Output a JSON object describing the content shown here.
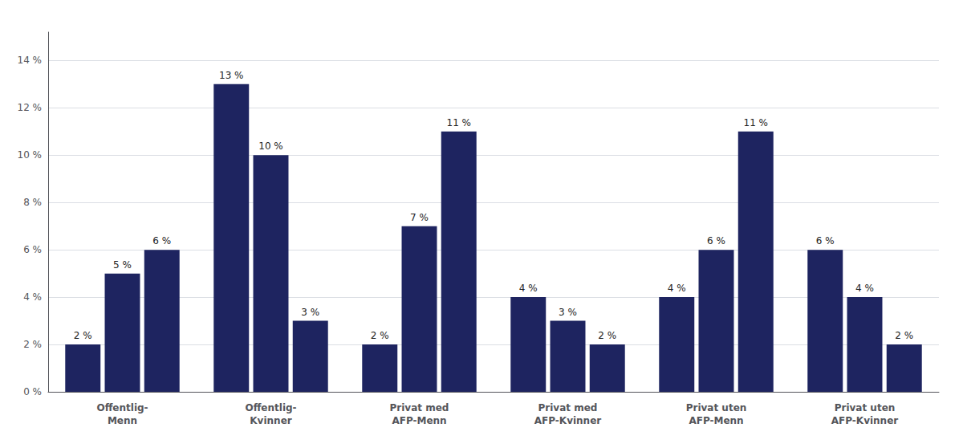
{
  "chart_data": {
    "type": "bar",
    "categories": [
      "Offentlig-\nMenn",
      "Offentlig-\nKvinner",
      "Privat med\nAFP-Menn",
      "Privat med\nAFP-Kvinner",
      "Privat uten\nAFP-Menn",
      "Privat uten\nAFP-Kvinner"
    ],
    "series": [
      {
        "values": [
          2,
          13,
          2,
          4,
          4,
          6
        ],
        "value_labels": [
          "2 %",
          "13 %",
          "2 %",
          "4 %",
          "4 %",
          "6 %"
        ]
      },
      {
        "values": [
          5,
          10,
          7,
          3,
          6,
          4
        ],
        "value_labels": [
          "5 %",
          "10 %",
          "7 %",
          "3 %",
          "6 %",
          "4 %"
        ]
      },
      {
        "values": [
          6,
          3,
          11,
          2,
          11,
          2
        ],
        "value_labels": [
          "6 %",
          "3 %",
          "11 %",
          "2 %",
          "11 %",
          "2 %"
        ]
      }
    ],
    "color": "#1e2460",
    "ylim": [
      0,
      15.2
    ],
    "yticks": [
      {
        "value": 0,
        "label": "0 %"
      },
      {
        "value": 2,
        "label": "2 %"
      },
      {
        "value": 4,
        "label": "4 %"
      },
      {
        "value": 6,
        "label": "6 %"
      },
      {
        "value": 8,
        "label": "8 %"
      },
      {
        "value": 10,
        "label": "10 %"
      },
      {
        "value": 12,
        "label": "12 %"
      },
      {
        "value": 14,
        "label": "14 %"
      }
    ],
    "grid": true,
    "data_labels": true
  }
}
